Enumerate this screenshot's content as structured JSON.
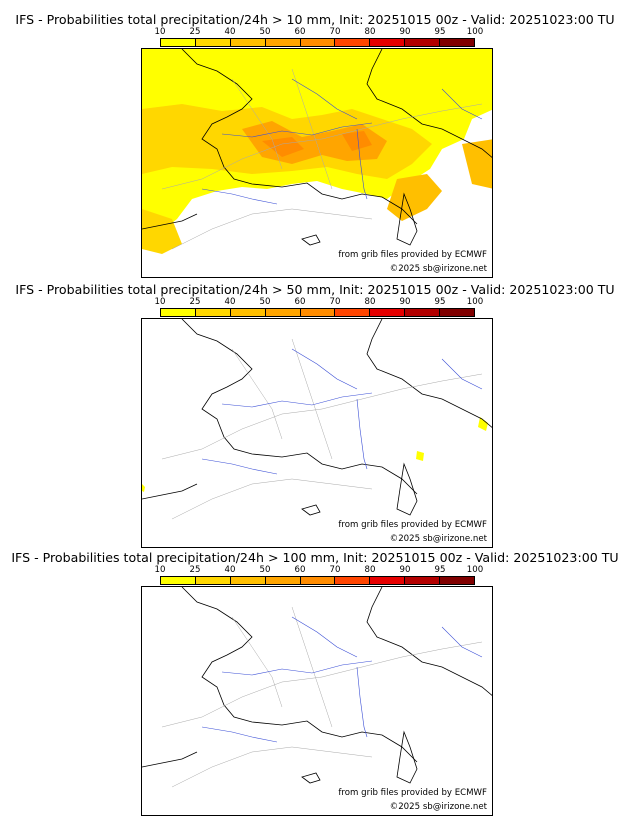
{
  "panels": [
    {
      "title": "IFS - Probabilities total precipitation/24h > 10 mm, Init: 20251015 00z - Valid: 20251023:00 TU",
      "threshold_mm": 10
    },
    {
      "title": "IFS - Probabilities total precipitation/24h > 50 mm, Init: 20251015 00z - Valid: 20251023:00 TU",
      "threshold_mm": 50
    },
    {
      "title": "IFS - Probabilities total precipitation/24h > 100 mm, Init: 20251015 00z - Valid: 20251023:00 TU",
      "threshold_mm": 100
    }
  ],
  "colorbar": {
    "ticks": [
      "10",
      "25",
      "40",
      "50",
      "60",
      "70",
      "80",
      "90",
      "95",
      "100"
    ],
    "colors": [
      "#ffff00",
      "#ffd700",
      "#ffbf00",
      "#ffa500",
      "#ff8c00",
      "#ff4500",
      "#e60000",
      "#b30000",
      "#800000"
    ]
  },
  "credits": {
    "source": "from grib files provided by ECMWF",
    "copyright": "©2025 sb@irizone.net"
  }
}
